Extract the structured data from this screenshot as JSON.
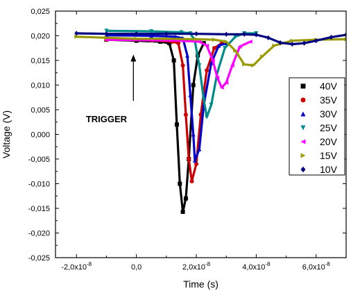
{
  "chart_data": {
    "type": "line",
    "xlabel": "Time (s)",
    "ylabel": "Voltage (V)",
    "xlim": [
      -2.7e-08,
      7e-08
    ],
    "ylim": [
      -0.025,
      0.025
    ],
    "x_ticks": [
      {
        "value": -2e-08,
        "label": "-2,0x10",
        "exp": "-8"
      },
      {
        "value": 0,
        "label": "0,0",
        "exp": ""
      },
      {
        "value": 2e-08,
        "label": "2,0x10",
        "exp": "-8"
      },
      {
        "value": 4e-08,
        "label": "4,0x10",
        "exp": "-8"
      },
      {
        "value": 6e-08,
        "label": "6,0x10",
        "exp": "-8"
      }
    ],
    "y_ticks": [
      {
        "value": 0.025,
        "label": "0,025"
      },
      {
        "value": 0.02,
        "label": "0,020"
      },
      {
        "value": 0.015,
        "label": "0,015"
      },
      {
        "value": 0.01,
        "label": "0,010"
      },
      {
        "value": 0.005,
        "label": "0,005"
      },
      {
        "value": 0.0,
        "label": "0,000"
      },
      {
        "value": -0.005,
        "label": "-0,005"
      },
      {
        "value": -0.01,
        "label": "-0,010"
      },
      {
        "value": -0.015,
        "label": "-0,015"
      },
      {
        "value": -0.02,
        "label": "-0,020"
      },
      {
        "value": -0.025,
        "label": "-0,025"
      }
    ],
    "annotation": {
      "text": "TRIGGER",
      "arrow_x": -1e-09,
      "arrow_from_y": 0.0068,
      "arrow_to_y": 0.0162,
      "text_x": -1e-08,
      "text_y": 0.0025
    },
    "legend_position": "right",
    "series": [
      {
        "name": "40V",
        "color": "#000000",
        "marker": "square",
        "x": [
          -1e-08,
          0.0,
          8e-09,
          1.1e-08,
          1.25e-08,
          1.35e-08,
          1.45e-08,
          1.55e-08,
          1.65e-08,
          1.75e-08,
          1.9e-08,
          2.05e-08,
          2.25e-08
        ],
        "y": [
          0.0192,
          0.019,
          0.0188,
          0.0185,
          0.015,
          0.002,
          -0.01,
          -0.0157,
          -0.013,
          -0.005,
          0.01,
          0.016,
          0.0185
        ]
      },
      {
        "name": "35V",
        "color": "#cc0000",
        "marker": "circle",
        "x": [
          -1e-08,
          5e-09,
          1.2e-08,
          1.4e-08,
          1.55e-08,
          1.65e-08,
          1.75e-08,
          1.85e-08,
          2e-08,
          2.15e-08,
          2.35e-08,
          2.6e-08,
          2.85e-08
        ],
        "y": [
          0.0192,
          0.0191,
          0.0188,
          0.0185,
          0.014,
          0.004,
          -0.005,
          -0.0095,
          -0.006,
          0.004,
          0.013,
          0.0175,
          0.0185
        ]
      },
      {
        "name": "30V",
        "color": "#0000cc",
        "marker": "triangle-up",
        "x": [
          -1e-08,
          5e-09,
          1.3e-08,
          1.55e-08,
          1.7e-08,
          1.8e-08,
          1.9e-08,
          1.95e-08,
          2.1e-08,
          2.25e-08,
          2.5e-08,
          2.75e-08,
          3e-08
        ],
        "y": [
          0.0201,
          0.02,
          0.0198,
          0.0195,
          0.016,
          0.008,
          0.0,
          -0.0053,
          -0.003,
          0.006,
          0.0145,
          0.018,
          0.0185
        ]
      },
      {
        "name": "25V",
        "color": "#008b8b",
        "marker": "triangle-down",
        "x": [
          -1e-08,
          5e-09,
          1.5e-08,
          1.8e-08,
          1.95e-08,
          2.1e-08,
          2.25e-08,
          2.35e-08,
          2.5e-08,
          2.7e-08,
          2.95e-08,
          3.3e-08,
          3.6e-08,
          4e-08
        ],
        "y": [
          0.021,
          0.0209,
          0.0207,
          0.0205,
          0.019,
          0.014,
          0.007,
          0.0035,
          0.006,
          0.0125,
          0.0175,
          0.0198,
          0.0205,
          0.0205
        ]
      },
      {
        "name": "20V",
        "color": "#ff00ff",
        "marker": "triangle-left",
        "x": [
          -1e-08,
          5e-09,
          1.5e-08,
          2.1e-08,
          2.35e-08,
          2.55e-08,
          2.7e-08,
          2.85e-08,
          3e-08,
          3.2e-08,
          3.45e-08,
          3.8e-08
        ],
        "y": [
          0.0192,
          0.0191,
          0.019,
          0.0188,
          0.018,
          0.015,
          0.0115,
          0.0095,
          0.0105,
          0.014,
          0.0178,
          0.0188
        ]
      },
      {
        "name": "15V",
        "color": "#999900",
        "marker": "triangle-right",
        "x": [
          -2e-08,
          -1e-08,
          0.0,
          1e-08,
          2e-08,
          2.6e-08,
          3e-08,
          3.3e-08,
          3.6e-08,
          3.9e-08,
          4.2e-08,
          4.6e-08,
          5.2e-08,
          6e-08,
          7e-08
        ],
        "y": [
          0.0198,
          0.0196,
          0.0194,
          0.0194,
          0.0193,
          0.0192,
          0.0188,
          0.017,
          0.0142,
          0.014,
          0.0158,
          0.018,
          0.019,
          0.0192,
          0.0193
        ]
      },
      {
        "name": "10V",
        "color": "#000080",
        "marker": "diamond",
        "x": [
          -2e-08,
          -1e-08,
          0.0,
          1e-08,
          2e-08,
          3e-08,
          3.6e-08,
          4e-08,
          4.4e-08,
          4.8e-08,
          5.2e-08,
          5.6e-08,
          6e-08,
          6.5e-08,
          7e-08
        ],
        "y": [
          0.0205,
          0.0204,
          0.0204,
          0.0204,
          0.0204,
          0.0203,
          0.0203,
          0.0202,
          0.0196,
          0.0186,
          0.0183,
          0.0185,
          0.019,
          0.0197,
          0.0202
        ]
      }
    ]
  }
}
